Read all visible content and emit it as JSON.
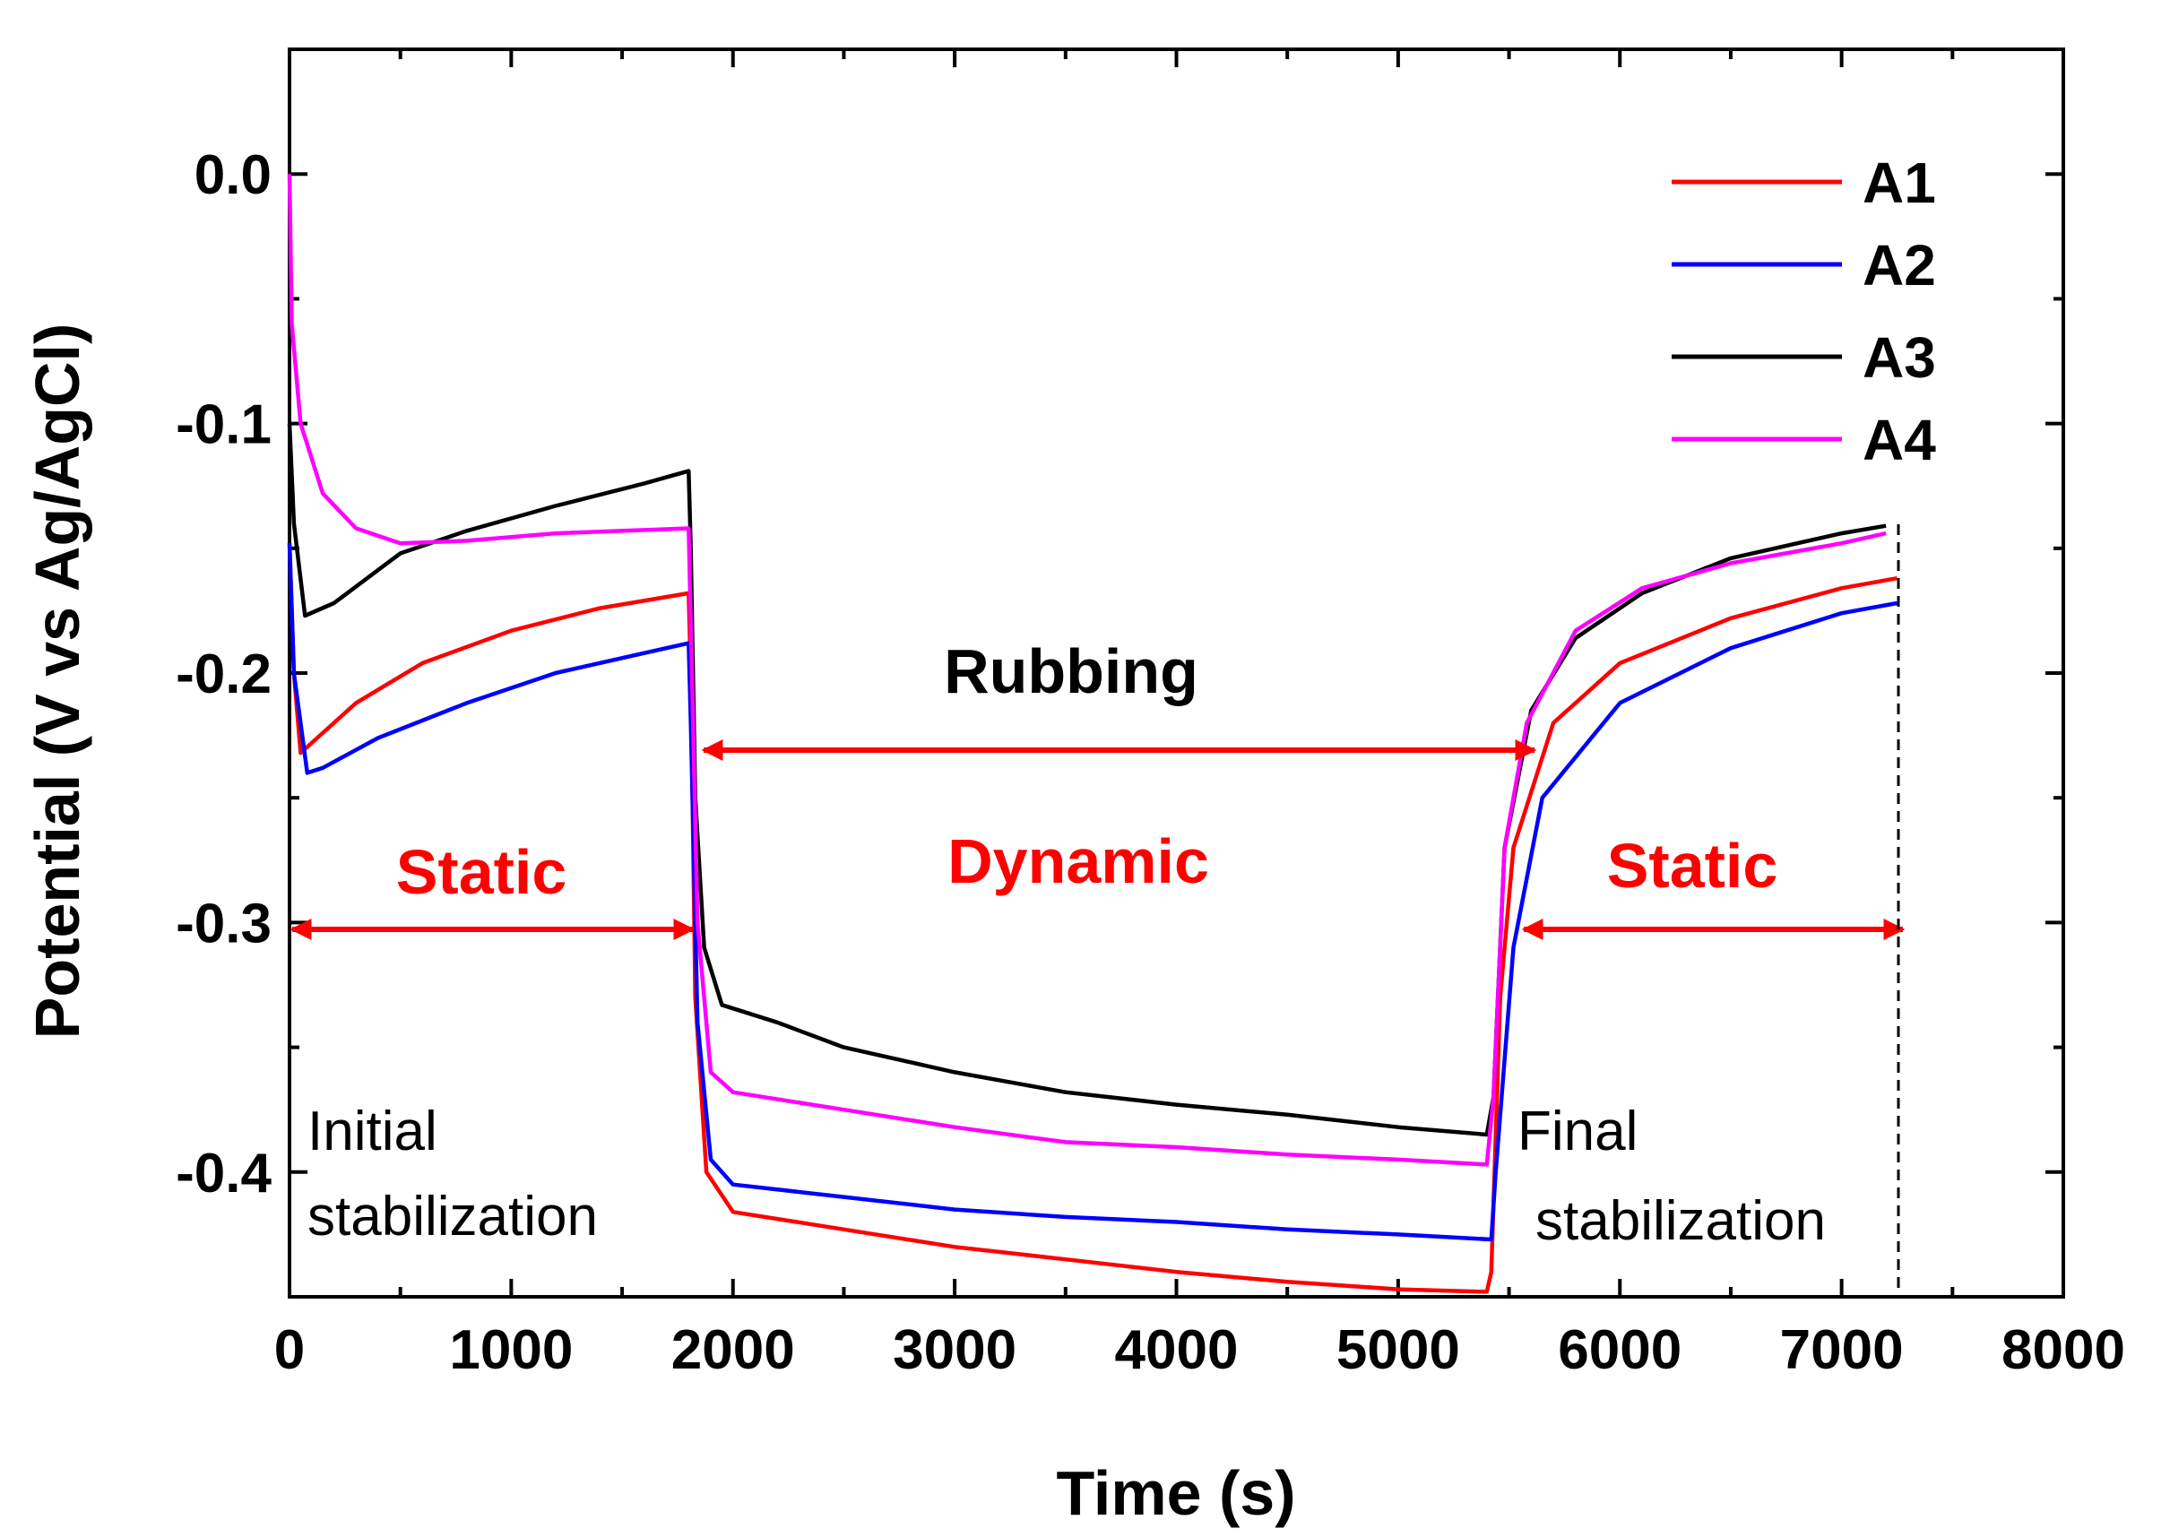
{
  "chart_data": {
    "type": "line",
    "xlabel": "Time (s)",
    "ylabel": "Potential (V vs Ag/AgCl)",
    "xlim": [
      0,
      8000
    ],
    "ylim": [
      -0.45,
      0.05
    ],
    "x_ticks": [
      0,
      1000,
      2000,
      3000,
      4000,
      5000,
      6000,
      7000,
      8000
    ],
    "x_tick_labels": [
      "0",
      "1000",
      "2000",
      "3000",
      "4000",
      "5000",
      "6000",
      "7000",
      "8000"
    ],
    "y_ticks": [
      0.0,
      -0.1,
      -0.2,
      -0.3,
      -0.4
    ],
    "y_tick_labels": [
      "0.0",
      "-0.1",
      "-0.2",
      "-0.3",
      "-0.4"
    ],
    "grid": false,
    "legend_position": "top-right",
    "series": [
      {
        "name": "A1",
        "color": "#ff0000",
        "points": [
          [
            0,
            -0.148
          ],
          [
            20,
            -0.2
          ],
          [
            50,
            -0.232
          ],
          [
            100,
            -0.228
          ],
          [
            300,
            -0.212
          ],
          [
            600,
            -0.196
          ],
          [
            1000,
            -0.183
          ],
          [
            1400,
            -0.174
          ],
          [
            1800,
            -0.168
          ],
          [
            1810,
            -0.2
          ],
          [
            1830,
            -0.33
          ],
          [
            1880,
            -0.4
          ],
          [
            2000,
            -0.416
          ],
          [
            2500,
            -0.423
          ],
          [
            3000,
            -0.43
          ],
          [
            3500,
            -0.435
          ],
          [
            4000,
            -0.44
          ],
          [
            4500,
            -0.444
          ],
          [
            5000,
            -0.447
          ],
          [
            5400,
            -0.448
          ],
          [
            5420,
            -0.44
          ],
          [
            5460,
            -0.33
          ],
          [
            5520,
            -0.27
          ],
          [
            5700,
            -0.22
          ],
          [
            6000,
            -0.196
          ],
          [
            6500,
            -0.178
          ],
          [
            7000,
            -0.166
          ],
          [
            7250,
            -0.162
          ]
        ]
      },
      {
        "name": "A2",
        "color": "#0000ff",
        "points": [
          [
            0,
            -0.148
          ],
          [
            20,
            -0.2
          ],
          [
            80,
            -0.24
          ],
          [
            150,
            -0.238
          ],
          [
            400,
            -0.226
          ],
          [
            800,
            -0.212
          ],
          [
            1200,
            -0.2
          ],
          [
            1600,
            -0.192
          ],
          [
            1800,
            -0.188
          ],
          [
            1810,
            -0.22
          ],
          [
            1840,
            -0.34
          ],
          [
            1900,
            -0.395
          ],
          [
            2000,
            -0.405
          ],
          [
            2500,
            -0.41
          ],
          [
            3000,
            -0.415
          ],
          [
            3500,
            -0.418
          ],
          [
            4000,
            -0.42
          ],
          [
            4500,
            -0.423
          ],
          [
            5000,
            -0.425
          ],
          [
            5420,
            -0.427
          ],
          [
            5440,
            -0.4
          ],
          [
            5520,
            -0.31
          ],
          [
            5650,
            -0.25
          ],
          [
            6000,
            -0.212
          ],
          [
            6500,
            -0.19
          ],
          [
            7000,
            -0.176
          ],
          [
            7250,
            -0.172
          ]
        ]
      },
      {
        "name": "A3",
        "color": "#000000",
        "points": [
          [
            0,
            -0.1
          ],
          [
            20,
            -0.14
          ],
          [
            70,
            -0.177
          ],
          [
            200,
            -0.172
          ],
          [
            500,
            -0.152
          ],
          [
            800,
            -0.143
          ],
          [
            1200,
            -0.133
          ],
          [
            1600,
            -0.124
          ],
          [
            1800,
            -0.119
          ],
          [
            1810,
            -0.15
          ],
          [
            1830,
            -0.25
          ],
          [
            1870,
            -0.31
          ],
          [
            1950,
            -0.333
          ],
          [
            2200,
            -0.34
          ],
          [
            2500,
            -0.35
          ],
          [
            3000,
            -0.36
          ],
          [
            3500,
            -0.368
          ],
          [
            4000,
            -0.373
          ],
          [
            4500,
            -0.377
          ],
          [
            5000,
            -0.382
          ],
          [
            5400,
            -0.385
          ],
          [
            5430,
            -0.37
          ],
          [
            5480,
            -0.27
          ],
          [
            5600,
            -0.215
          ],
          [
            5800,
            -0.186
          ],
          [
            6100,
            -0.168
          ],
          [
            6500,
            -0.154
          ],
          [
            7000,
            -0.144
          ],
          [
            7200,
            -0.141
          ]
        ]
      },
      {
        "name": "A4",
        "color": "#ff00ff",
        "points": [
          [
            0,
            0.0
          ],
          [
            10,
            -0.06
          ],
          [
            50,
            -0.1
          ],
          [
            150,
            -0.128
          ],
          [
            300,
            -0.142
          ],
          [
            500,
            -0.148
          ],
          [
            800,
            -0.147
          ],
          [
            1200,
            -0.144
          ],
          [
            1800,
            -0.142
          ],
          [
            1810,
            -0.18
          ],
          [
            1840,
            -0.3
          ],
          [
            1900,
            -0.36
          ],
          [
            2000,
            -0.368
          ],
          [
            2500,
            -0.375
          ],
          [
            3000,
            -0.382
          ],
          [
            3500,
            -0.388
          ],
          [
            4000,
            -0.39
          ],
          [
            4500,
            -0.393
          ],
          [
            5000,
            -0.395
          ],
          [
            5400,
            -0.397
          ],
          [
            5430,
            -0.37
          ],
          [
            5480,
            -0.27
          ],
          [
            5580,
            -0.22
          ],
          [
            5800,
            -0.183
          ],
          [
            6100,
            -0.166
          ],
          [
            6500,
            -0.156
          ],
          [
            7000,
            -0.148
          ],
          [
            7200,
            -0.144
          ]
        ]
      }
    ],
    "annotations": {
      "rubbing": "Rubbing",
      "dynamic": "Dynamic",
      "static_left": "Static",
      "static_right": "Static",
      "initial_line1": "Initial",
      "initial_line2": "stabilization",
      "final_line1": "Final",
      "final_line2": "stabilization"
    }
  }
}
